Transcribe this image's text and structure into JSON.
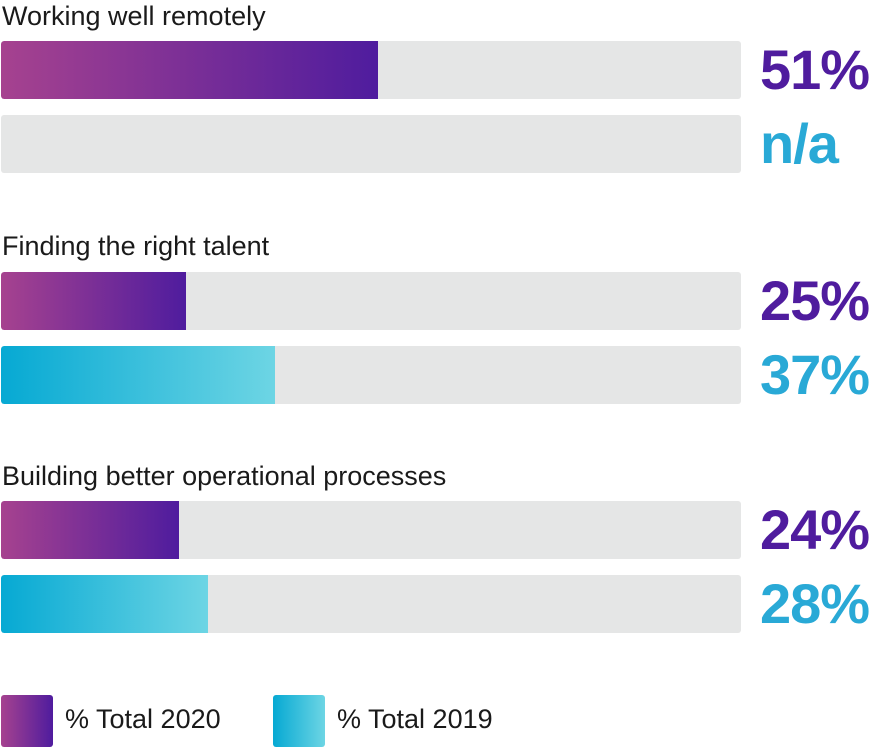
{
  "chart_data": {
    "type": "bar",
    "orientation": "horizontal",
    "categories": [
      "Working well remotely",
      "Finding the right talent",
      "Building better operational processes"
    ],
    "series": [
      {
        "name": "% Total 2020",
        "values": [
          51,
          25,
          24
        ],
        "labels": [
          "51%",
          "25%",
          "24%"
        ],
        "color": "#4f1c9e",
        "gradient": [
          "#a6428f",
          "#4f1c9e"
        ]
      },
      {
        "name": "% Total 2019",
        "values": [
          null,
          37,
          28
        ],
        "labels": [
          "n/a",
          "37%",
          "28%"
        ],
        "color": "#29a9d6",
        "gradient": [
          "#06a9d3",
          "#6dd5e4"
        ]
      }
    ],
    "xlim": [
      0,
      100
    ],
    "grid": false,
    "legend": "bottom-left",
    "track_color": "#e5e6e6"
  }
}
